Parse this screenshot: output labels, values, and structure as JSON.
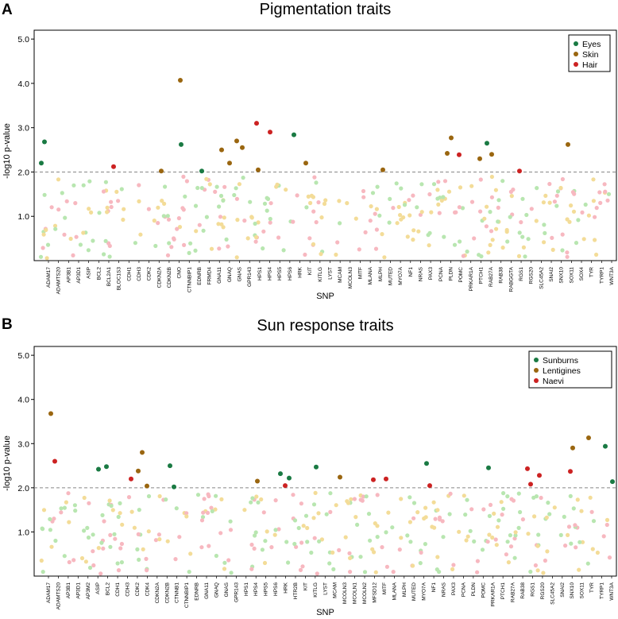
{
  "chart_data": [
    {
      "panel": "A",
      "type": "scatter",
      "title": "Pigmentation traits",
      "xlabel": "SNP",
      "ylabel": "-log10 p-value",
      "ylim": [
        0,
        5.2
      ],
      "yticks": [
        "1.0",
        "2.0",
        "3.0",
        "4.0",
        "5.0"
      ],
      "threshold": 2.0,
      "legend": [
        {
          "label": "Eyes",
          "color": "#1a7a43"
        },
        {
          "label": "Skin",
          "color": "#9a6610"
        },
        {
          "label": "Hair",
          "color": "#cc2222"
        }
      ],
      "legend_position": "top-right",
      "snps": [
        "ADAM17",
        "ADAMTS20",
        "AP3B1",
        "AP3D1",
        "ASIP",
        "BCL2",
        "BCL2A1",
        "BLOC1S3",
        "CDH1",
        "CDH3",
        "CDK2",
        "CDKN2A",
        "CDKN2B",
        "CNO",
        "CTNNBIP1",
        "EDNRB",
        "FRMD4",
        "GNA11",
        "GNAQ",
        "GNAS",
        "GPR143",
        "HPS1",
        "HPS4",
        "HPS5",
        "HPS6",
        "HRK",
        "KIT",
        "KITLG",
        "LYST",
        "MCAM",
        "MCOLN3",
        "MITF",
        "MLANA",
        "MLPH",
        "MUTED",
        "MYO7A",
        "NF1",
        "NRAS",
        "PAX3",
        "PCNA",
        "PLDN",
        "POMC",
        "PRKAR1A",
        "PTCH1",
        "RAB27A",
        "RAB38",
        "RABGGTA",
        "RGS1",
        "RGS20",
        "SLC45A2",
        "SNAI2",
        "SNX10",
        "SOX11",
        "SOX4",
        "TYR",
        "TYRP1",
        "WNT3A"
      ],
      "significant_points": [
        {
          "trait": "Eyes",
          "x": 52,
          "y": 2.2
        },
        {
          "trait": "Eyes",
          "x": 56,
          "y": 2.68
        },
        {
          "trait": "Hair",
          "x": 143,
          "y": 2.12
        },
        {
          "trait": "Skin",
          "x": 203,
          "y": 2.02
        },
        {
          "trait": "Skin",
          "x": 227,
          "y": 4.07
        },
        {
          "trait": "Eyes",
          "x": 228,
          "y": 2.62
        },
        {
          "trait": "Eyes",
          "x": 254,
          "y": 2.02
        },
        {
          "trait": "Skin",
          "x": 279,
          "y": 2.5
        },
        {
          "trait": "Skin",
          "x": 289,
          "y": 2.2
        },
        {
          "trait": "Skin",
          "x": 298,
          "y": 2.7
        },
        {
          "trait": "Skin",
          "x": 305,
          "y": 2.55
        },
        {
          "trait": "Hair",
          "x": 323,
          "y": 3.1
        },
        {
          "trait": "Skin",
          "x": 325,
          "y": 2.05
        },
        {
          "trait": "Hair",
          "x": 340,
          "y": 2.9
        },
        {
          "trait": "Eyes",
          "x": 370,
          "y": 2.84
        },
        {
          "trait": "Skin",
          "x": 385,
          "y": 2.2
        },
        {
          "trait": "Skin",
          "x": 482,
          "y": 2.05
        },
        {
          "trait": "Skin",
          "x": 563,
          "y": 2.42
        },
        {
          "trait": "Skin",
          "x": 568,
          "y": 2.77
        },
        {
          "trait": "Hair",
          "x": 578,
          "y": 2.39
        },
        {
          "trait": "Skin",
          "x": 604,
          "y": 2.3
        },
        {
          "trait": "Eyes",
          "x": 613,
          "y": 2.65
        },
        {
          "trait": "Skin",
          "x": 619,
          "y": 2.4
        },
        {
          "trait": "Hair",
          "x": 654,
          "y": 2.02
        },
        {
          "trait": "Skin",
          "x": 715,
          "y": 2.62
        }
      ]
    },
    {
      "panel": "B",
      "type": "scatter",
      "title": "Sun response traits",
      "xlabel": "SNP",
      "ylabel": "-log10 p-value",
      "ylim": [
        0,
        5.2
      ],
      "yticks": [
        "1.0",
        "2.0",
        "3.0",
        "4.0",
        "5.0"
      ],
      "threshold": 2.0,
      "legend": [
        {
          "label": "Sunburns",
          "color": "#1a7a43"
        },
        {
          "label": "Lentigines",
          "color": "#9a6610"
        },
        {
          "label": "Naevi",
          "color": "#cc2222"
        }
      ],
      "legend_position": "top-right",
      "snps": [
        "ADAM17",
        "ADAMTS20",
        "AP3B1",
        "AP3D1",
        "AP3M2",
        "ASIP",
        "BCL2",
        "CDH1",
        "CDH3",
        "CDK2",
        "CDK4",
        "CDKN2A",
        "CDKN2B",
        "CTNNB1",
        "CTNNBIP1",
        "EDNRB",
        "GNA11",
        "GNAQ",
        "GNAS",
        "GPR143",
        "HPS1",
        "HPS4",
        "HPS5",
        "HPS6",
        "HRK",
        "HTR2B",
        "KIT",
        "KITLG",
        "LYST",
        "MCAM",
        "MCOLN3",
        "MCOLN1",
        "MCOLN2",
        "MFSD12",
        "MITF",
        "MLANA",
        "MLPH",
        "MUTED",
        "MYO7A",
        "NF1",
        "NRAS",
        "PAX3",
        "PCNA",
        "PLDN",
        "POMC",
        "PRKAR1A",
        "PTCH1",
        "RAB27A",
        "RAB38",
        "RGS1",
        "RGS20",
        "SLC45A2",
        "SNAI2",
        "SNX10",
        "SOX11",
        "TYR",
        "TYRP1",
        "WNT3A"
      ],
      "significant_points": [
        {
          "trait": "Lentigines",
          "x": 64,
          "y": 3.68
        },
        {
          "trait": "Naevi",
          "x": 69,
          "y": 2.6
        },
        {
          "trait": "Sunburns",
          "x": 124,
          "y": 2.42
        },
        {
          "trait": "Sunburns",
          "x": 134,
          "y": 2.48
        },
        {
          "trait": "Naevi",
          "x": 165,
          "y": 2.2
        },
        {
          "trait": "Lentigines",
          "x": 174,
          "y": 2.38
        },
        {
          "trait": "Lentigines",
          "x": 179,
          "y": 2.8
        },
        {
          "trait": "Lentigines",
          "x": 185,
          "y": 2.04
        },
        {
          "trait": "Sunburns",
          "x": 214,
          "y": 2.5
        },
        {
          "trait": "Sunburns",
          "x": 219,
          "y": 2.02
        },
        {
          "trait": "Lentigines",
          "x": 324,
          "y": 2.15
        },
        {
          "trait": "Sunburns",
          "x": 353,
          "y": 2.32
        },
        {
          "trait": "Naevi",
          "x": 359,
          "y": 2.05
        },
        {
          "trait": "Sunburns",
          "x": 364,
          "y": 2.22
        },
        {
          "trait": "Sunburns",
          "x": 398,
          "y": 2.47
        },
        {
          "trait": "Lentigines",
          "x": 428,
          "y": 2.24
        },
        {
          "trait": "Naevi",
          "x": 470,
          "y": 2.18
        },
        {
          "trait": "Naevi",
          "x": 486,
          "y": 2.2
        },
        {
          "trait": "Sunburns",
          "x": 537,
          "y": 2.55
        },
        {
          "trait": "Naevi",
          "x": 541,
          "y": 2.05
        },
        {
          "trait": "Sunburns",
          "x": 615,
          "y": 2.45
        },
        {
          "trait": "Naevi",
          "x": 664,
          "y": 2.43
        },
        {
          "trait": "Naevi",
          "x": 668,
          "y": 2.08
        },
        {
          "trait": "Naevi",
          "x": 679,
          "y": 2.28
        },
        {
          "trait": "Naevi",
          "x": 718,
          "y": 2.37
        },
        {
          "trait": "Lentigines",
          "x": 721,
          "y": 2.9
        },
        {
          "trait": "Lentigines",
          "x": 741,
          "y": 3.13
        },
        {
          "trait": "Sunburns",
          "x": 762,
          "y": 2.94
        },
        {
          "trait": "Sunburns",
          "x": 771,
          "y": 2.14
        }
      ]
    }
  ],
  "panel_letters": [
    "A",
    "B"
  ]
}
